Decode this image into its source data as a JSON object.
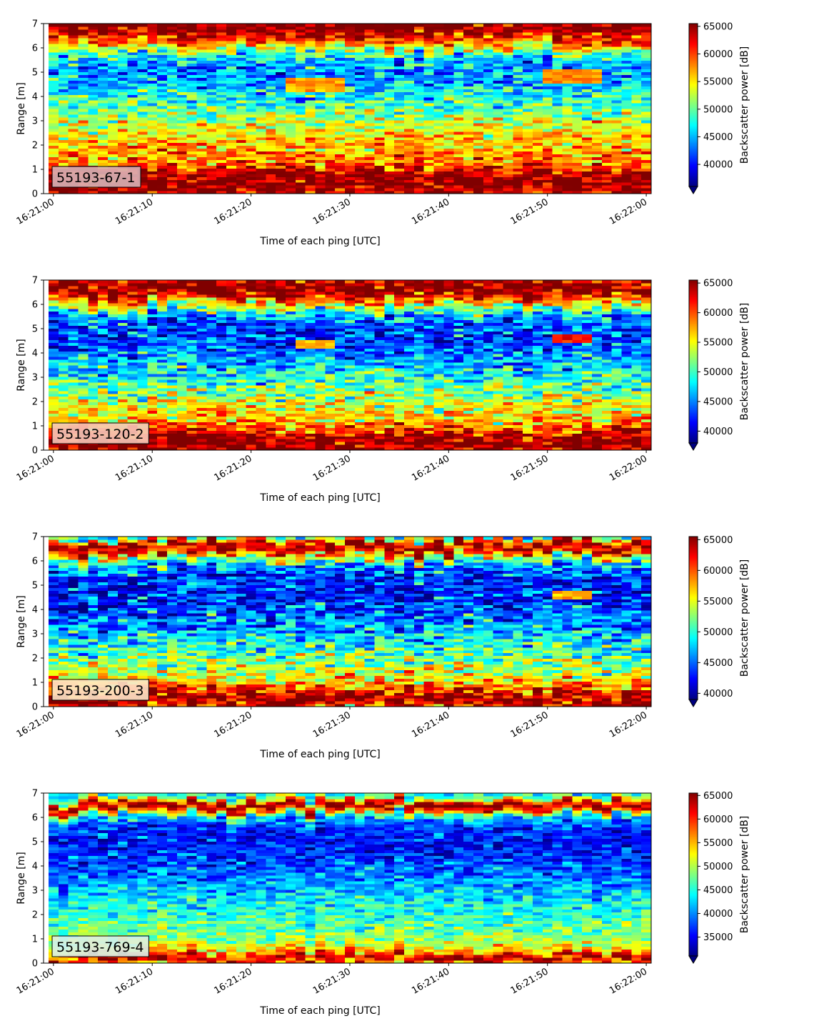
{
  "chart_data": [
    {
      "type": "heatmap",
      "label": "55193-67-1",
      "label_box_color": "#d9b3b6",
      "xlabel": "Time of each ping [UTC]",
      "ylabel": "Range [m]",
      "x_ticks": [
        "16:21:00",
        "16:21:10",
        "16:21:20",
        "16:21:30",
        "16:21:40",
        "16:21:50",
        "16:22:00"
      ],
      "xlim": [
        -1,
        60.5
      ],
      "ylim": [
        0,
        7
      ],
      "y_ticks": [
        0,
        1,
        2,
        3,
        4,
        5,
        6,
        7
      ],
      "colorbar_label": "Backscatter power [dB]",
      "colorbar_range": [
        36000,
        65500
      ],
      "colorbar_ticks": [
        40000,
        45000,
        50000,
        55000,
        60000,
        65000
      ],
      "colorbar_extend": "min",
      "colormap": "jet",
      "n_pings": 61,
      "profile": {
        "r": [
          0,
          0.25,
          0.45,
          0.9,
          1.3,
          2.0,
          2.8,
          3.5,
          4.2,
          4.8,
          5.3,
          5.8,
          6.2,
          6.5,
          6.75,
          7.0
        ],
        "v": [
          62000,
          65500,
          65500,
          64000,
          58000,
          56500,
          54000,
          50000,
          47000,
          44000,
          44000,
          49000,
          58000,
          62000,
          65500,
          65500
        ]
      },
      "noise": 4500,
      "features": [
        {
          "kind": "lens",
          "t0": 24,
          "t1": 29,
          "r": 4.5,
          "w": 0.18,
          "v": 57000
        },
        {
          "kind": "lens",
          "t0": 50,
          "t1": 55,
          "r": 4.85,
          "w": 0.18,
          "v": 58000
        }
      ]
    },
    {
      "type": "heatmap",
      "label": "55193-120-2",
      "label_box_color": "#f5c6b8",
      "xlabel": "Time of each ping [UTC]",
      "ylabel": "Range [m]",
      "x_ticks": [
        "16:21:00",
        "16:21:10",
        "16:21:20",
        "16:21:30",
        "16:21:40",
        "16:21:50",
        "16:22:00"
      ],
      "xlim": [
        -1,
        60.5
      ],
      "ylim": [
        0,
        7
      ],
      "y_ticks": [
        0,
        1,
        2,
        3,
        4,
        5,
        6,
        7
      ],
      "colorbar_label": "Backscatter power [dB]",
      "colorbar_range": [
        38000,
        65500
      ],
      "colorbar_ticks": [
        40000,
        45000,
        50000,
        55000,
        60000,
        65000
      ],
      "colorbar_extend": "min",
      "colormap": "jet",
      "n_pings": 61,
      "profile": {
        "r": [
          0,
          0.2,
          0.5,
          0.8,
          1.2,
          2.0,
          3.0,
          4.0,
          4.6,
          5.2,
          5.6,
          6.0,
          6.3,
          6.5,
          6.8,
          7.0
        ],
        "v": [
          64000,
          65500,
          65500,
          61000,
          57000,
          54000,
          49000,
          45000,
          43000,
          43500,
          47000,
          55000,
          61000,
          65500,
          65500,
          63000
        ]
      },
      "noise": 4500,
      "features": [
        {
          "kind": "lens",
          "t0": 25,
          "t1": 28,
          "r": 4.35,
          "w": 0.12,
          "v": 57000
        },
        {
          "kind": "lens",
          "t0": 51,
          "t1": 54,
          "r": 4.6,
          "w": 0.12,
          "v": 62000
        }
      ]
    },
    {
      "type": "heatmap",
      "label": "55193-200-3",
      "label_box_color": "#fde6c8",
      "xlabel": "Time of each ping [UTC]",
      "ylabel": "Range [m]",
      "x_ticks": [
        "16:21:00",
        "16:21:10",
        "16:21:20",
        "16:21:30",
        "16:21:40",
        "16:21:50",
        "16:22:00"
      ],
      "xlim": [
        -1,
        60.5
      ],
      "ylim": [
        0,
        7
      ],
      "y_ticks": [
        0,
        1,
        2,
        3,
        4,
        5,
        6,
        7
      ],
      "colorbar_label": "Backscatter power [dB]",
      "colorbar_range": [
        39000,
        65500
      ],
      "colorbar_ticks": [
        40000,
        45000,
        50000,
        55000,
        60000,
        65000
      ],
      "colorbar_extend": "min",
      "colormap": "jet",
      "n_pings": 61,
      "profile": {
        "r": [
          0,
          0.2,
          0.4,
          0.8,
          1.2,
          2.0,
          3.0,
          4.0,
          4.6,
          5.2,
          5.8,
          6.2,
          6.4,
          6.6,
          6.85,
          7.0
        ],
        "v": [
          60000,
          65500,
          65500,
          60000,
          55000,
          52000,
          48000,
          44000,
          43000,
          43000,
          46000,
          55000,
          62000,
          65500,
          60000,
          50000
        ]
      },
      "noise": 4500,
      "features": [
        {
          "kind": "lens",
          "t0": 51,
          "t1": 54,
          "r": 4.6,
          "w": 0.1,
          "v": 58000
        }
      ]
    },
    {
      "type": "heatmap",
      "label": "55193-769-4",
      "label_box_color": "#d8f0e8",
      "xlabel": "Time of each ping [UTC]",
      "ylabel": "Range [m]",
      "x_ticks": [
        "16:21:00",
        "16:21:10",
        "16:21:20",
        "16:21:30",
        "16:21:40",
        "16:21:50",
        "16:22:00"
      ],
      "xlim": [
        -1,
        60.5
      ],
      "ylim": [
        0,
        7
      ],
      "y_ticks": [
        0,
        1,
        2,
        3,
        4,
        5,
        6,
        7
      ],
      "colorbar_label": "Backscatter power [dB]",
      "colorbar_range": [
        31000,
        65500
      ],
      "colorbar_ticks": [
        35000,
        40000,
        45000,
        50000,
        55000,
        60000,
        65000
      ],
      "colorbar_extend": "min",
      "colormap": "jet",
      "n_pings": 61,
      "profile": {
        "r": [
          0,
          0.15,
          0.3,
          0.5,
          1.0,
          1.5,
          2.2,
          3.0,
          4.0,
          4.6,
          5.2,
          5.8,
          6.1,
          6.35,
          6.55,
          6.8,
          7.0
        ],
        "v": [
          55000,
          65500,
          62000,
          54000,
          49000,
          47000,
          45000,
          42000,
          38000,
          36000,
          36000,
          38000,
          45000,
          62000,
          65500,
          48000,
          44000
        ]
      },
      "noise": 4000,
      "features": []
    }
  ]
}
